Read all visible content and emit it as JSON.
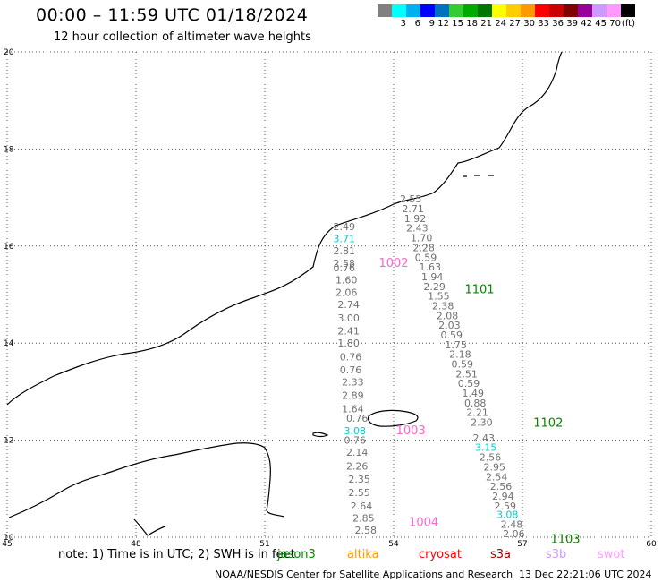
{
  "header": {
    "title": "00:00 – 11:59 UTC 01/18/2024",
    "subtitle": "12 hour collection of altimeter wave heights"
  },
  "legend": {
    "unit": "(ft)",
    "bins": [
      {
        "label": "",
        "color": "#808080"
      },
      {
        "label": "3",
        "color": "#00ffff"
      },
      {
        "label": "6",
        "color": "#00b0f0"
      },
      {
        "label": "9",
        "color": "#0000ff"
      },
      {
        "label": "12",
        "color": "#0070c0"
      },
      {
        "label": "15",
        "color": "#33cc33"
      },
      {
        "label": "18",
        "color": "#00aa00"
      },
      {
        "label": "21",
        "color": "#007700"
      },
      {
        "label": "24",
        "color": "#ffff00"
      },
      {
        "label": "27",
        "color": "#ffcc00"
      },
      {
        "label": "30",
        "color": "#ff9900"
      },
      {
        "label": "33",
        "color": "#ff0000"
      },
      {
        "label": "36",
        "color": "#cc0000"
      },
      {
        "label": "39",
        "color": "#800000"
      },
      {
        "label": "42",
        "color": "#990099"
      },
      {
        "label": "45",
        "color": "#cc99ff"
      },
      {
        "label": "70",
        "color": "#ff99ff"
      },
      {
        "label": "",
        "color": "#000000"
      }
    ]
  },
  "map": {
    "lon_ticks": [
      "45",
      "48",
      "51",
      "54",
      "57",
      "60"
    ],
    "lat_ticks": [
      "20",
      "18",
      "16",
      "14",
      "12",
      "10"
    ],
    "tracks": [
      {
        "id": "1002",
        "color": "#ff66cc",
        "label_lon": 54.0,
        "label_lat": 15.65
      },
      {
        "id": "1003",
        "color": "#ff66cc",
        "label_lon": 54.4,
        "label_lat": 12.2
      },
      {
        "id": "1004",
        "color": "#ff66cc",
        "label_lon": 54.7,
        "label_lat": 10.3
      },
      {
        "id": "1101",
        "color": "#008800",
        "label_lon": 56.0,
        "label_lat": 15.1
      },
      {
        "id": "1102",
        "color": "#008800",
        "label_lon": 57.6,
        "label_lat": 12.35
      },
      {
        "id": "1103",
        "color": "#008800",
        "label_lon": 58.0,
        "label_lat": 9.95
      }
    ],
    "measurements": [
      {
        "v": "2.55",
        "lon": 54.4,
        "lat": 16.97,
        "c": "#707070"
      },
      {
        "v": "2.71",
        "lon": 54.45,
        "lat": 16.77,
        "c": "#707070"
      },
      {
        "v": "1.92",
        "lon": 54.5,
        "lat": 16.57,
        "c": "#707070"
      },
      {
        "v": "2.43",
        "lon": 54.55,
        "lat": 16.37,
        "c": "#707070"
      },
      {
        "v": "1.70",
        "lon": 54.65,
        "lat": 16.17,
        "c": "#707070"
      },
      {
        "v": "2.28",
        "lon": 54.7,
        "lat": 15.97,
        "c": "#707070"
      },
      {
        "v": "0.59",
        "lon": 54.75,
        "lat": 15.77,
        "c": "#707070"
      },
      {
        "v": "1.63",
        "lon": 54.85,
        "lat": 15.57,
        "c": "#707070"
      },
      {
        "v": "1.94",
        "lon": 54.9,
        "lat": 15.37,
        "c": "#707070"
      },
      {
        "v": "2.29",
        "lon": 54.95,
        "lat": 15.17,
        "c": "#707070"
      },
      {
        "v": "1.55",
        "lon": 55.05,
        "lat": 14.97,
        "c": "#707070"
      },
      {
        "v": "2.38",
        "lon": 55.15,
        "lat": 14.77,
        "c": "#707070"
      },
      {
        "v": "2.08",
        "lon": 55.25,
        "lat": 14.57,
        "c": "#707070"
      },
      {
        "v": "2.03",
        "lon": 55.3,
        "lat": 14.37,
        "c": "#707070"
      },
      {
        "v": "0.59",
        "lon": 55.35,
        "lat": 14.17,
        "c": "#707070"
      },
      {
        "v": "1.75",
        "lon": 55.45,
        "lat": 13.97,
        "c": "#707070"
      },
      {
        "v": "2.18",
        "lon": 55.55,
        "lat": 13.77,
        "c": "#707070"
      },
      {
        "v": "0.59",
        "lon": 55.6,
        "lat": 13.57,
        "c": "#707070"
      },
      {
        "v": "2.51",
        "lon": 55.7,
        "lat": 13.37,
        "c": "#707070"
      },
      {
        "v": "0.59",
        "lon": 55.75,
        "lat": 13.17,
        "c": "#707070"
      },
      {
        "v": "1.49",
        "lon": 55.85,
        "lat": 12.97,
        "c": "#707070"
      },
      {
        "v": "0.88",
        "lon": 55.9,
        "lat": 12.77,
        "c": "#707070"
      },
      {
        "v": "2.21",
        "lon": 55.95,
        "lat": 12.57,
        "c": "#707070"
      },
      {
        "v": "2.30",
        "lon": 56.05,
        "lat": 12.37,
        "c": "#707070"
      },
      {
        "v": "2.43",
        "lon": 56.1,
        "lat": 12.05,
        "c": "#707070"
      },
      {
        "v": "3.15",
        "lon": 56.15,
        "lat": 11.85,
        "c": "#00cccc"
      },
      {
        "v": "2.56",
        "lon": 56.25,
        "lat": 11.65,
        "c": "#707070"
      },
      {
        "v": "2.95",
        "lon": 56.35,
        "lat": 11.45,
        "c": "#707070"
      },
      {
        "v": "2.54",
        "lon": 56.4,
        "lat": 11.25,
        "c": "#707070"
      },
      {
        "v": "2.56",
        "lon": 56.5,
        "lat": 11.05,
        "c": "#707070"
      },
      {
        "v": "2.94",
        "lon": 56.55,
        "lat": 10.85,
        "c": "#707070"
      },
      {
        "v": "2.59",
        "lon": 56.6,
        "lat": 10.65,
        "c": "#707070"
      },
      {
        "v": "3.08",
        "lon": 56.65,
        "lat": 10.47,
        "c": "#00cccc"
      },
      {
        "v": "2.48",
        "lon": 56.75,
        "lat": 10.27,
        "c": "#707070"
      },
      {
        "v": "2.06",
        "lon": 56.8,
        "lat": 10.07,
        "c": "#707070"
      },
      {
        "v": "2.49",
        "lon": 52.85,
        "lat": 16.4,
        "c": "#707070"
      },
      {
        "v": "3.71",
        "lon": 52.85,
        "lat": 16.15,
        "c": "#00cccc"
      },
      {
        "v": "2.81",
        "lon": 52.85,
        "lat": 15.9,
        "c": "#707070"
      },
      {
        "v": "2.58",
        "lon": 52.85,
        "lat": 15.65,
        "c": "#707070"
      },
      {
        "v": "0.76",
        "lon": 52.85,
        "lat": 15.55,
        "c": "#707070"
      },
      {
        "v": "1.60",
        "lon": 52.9,
        "lat": 15.3,
        "c": "#707070"
      },
      {
        "v": "2.06",
        "lon": 52.9,
        "lat": 15.05,
        "c": "#707070"
      },
      {
        "v": "2.74",
        "lon": 52.95,
        "lat": 14.8,
        "c": "#707070"
      },
      {
        "v": "3.00",
        "lon": 52.95,
        "lat": 14.52,
        "c": "#707070"
      },
      {
        "v": "2.41",
        "lon": 52.95,
        "lat": 14.25,
        "c": "#707070"
      },
      {
        "v": "1.80",
        "lon": 52.95,
        "lat": 14.0,
        "c": "#707070"
      },
      {
        "v": "0.76",
        "lon": 53.0,
        "lat": 13.72,
        "c": "#707070"
      },
      {
        "v": "0.76",
        "lon": 53.0,
        "lat": 13.45,
        "c": "#707070"
      },
      {
        "v": "2.33",
        "lon": 53.05,
        "lat": 13.2,
        "c": "#707070"
      },
      {
        "v": "2.89",
        "lon": 53.05,
        "lat": 12.92,
        "c": "#707070"
      },
      {
        "v": "1.64",
        "lon": 53.05,
        "lat": 12.65,
        "c": "#707070"
      },
      {
        "v": "0.76",
        "lon": 53.15,
        "lat": 12.45,
        "c": "#707070"
      },
      {
        "v": "3.08",
        "lon": 53.1,
        "lat": 12.2,
        "c": "#00cccc"
      },
      {
        "v": "0.76",
        "lon": 53.1,
        "lat": 12.0,
        "c": "#707070"
      },
      {
        "v": "2.14",
        "lon": 53.15,
        "lat": 11.75,
        "c": "#707070"
      },
      {
        "v": "2.26",
        "lon": 53.15,
        "lat": 11.47,
        "c": "#707070"
      },
      {
        "v": "2.35",
        "lon": 53.2,
        "lat": 11.2,
        "c": "#707070"
      },
      {
        "v": "2.55",
        "lon": 53.2,
        "lat": 10.92,
        "c": "#707070"
      },
      {
        "v": "2.64",
        "lon": 53.25,
        "lat": 10.65,
        "c": "#707070"
      },
      {
        "v": "2.85",
        "lon": 53.3,
        "lat": 10.4,
        "c": "#707070"
      },
      {
        "v": "2.58",
        "lon": 53.35,
        "lat": 10.15,
        "c": "#707070"
      }
    ]
  },
  "note": {
    "prefix": "note: 1) Time is in UTC; 2) SWH is in feet",
    "satellites": [
      {
        "name": "jason3",
        "color": "#008800"
      },
      {
        "name": "altika",
        "color": "#ff9900"
      },
      {
        "name": "cryosat",
        "color": "#ff0000"
      },
      {
        "name": "s3a",
        "color": "#990000"
      },
      {
        "name": "s3b",
        "color": "#cc99ff"
      },
      {
        "name": "swot",
        "color": "#ff99ff"
      }
    ]
  },
  "footer": {
    "credit": "NOAA/NESDIS Center for Satellite Applications and Research",
    "generated": "13 Dec 22:21:06 UTC 2024"
  }
}
